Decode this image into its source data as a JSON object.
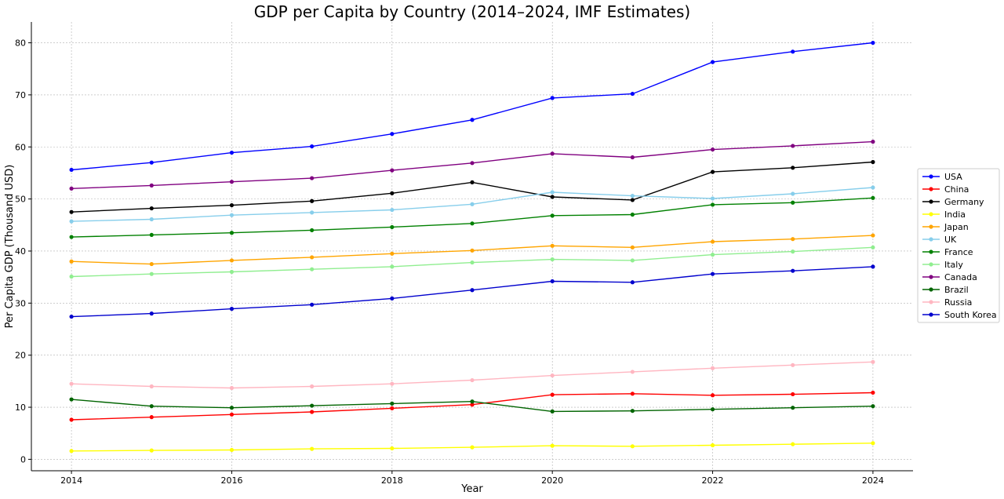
{
  "chart_data": {
    "type": "line",
    "title": "GDP per Capita by Country (2014–2024, IMF Estimates)",
    "xlabel": "Year",
    "ylabel": "Per Capita GDP (Thousand USD)",
    "x": [
      2014,
      2015,
      2016,
      2017,
      2018,
      2019,
      2020,
      2021,
      2022,
      2023,
      2024
    ],
    "xticks": [
      2014,
      2016,
      2018,
      2020,
      2022,
      2024
    ],
    "yticks": [
      0,
      10,
      20,
      30,
      40,
      50,
      60,
      70,
      80
    ],
    "xlim": [
      2013.5,
      2024.5
    ],
    "ylim": [
      -2.2,
      84
    ],
    "grid": true,
    "legend_position": "center-right",
    "series": [
      {
        "name": "USA",
        "color": "#0000ff",
        "values": [
          55.6,
          57.0,
          58.9,
          60.1,
          62.5,
          65.2,
          69.4,
          70.2,
          76.3,
          78.3,
          80.0
        ]
      },
      {
        "name": "China",
        "color": "#ff0000",
        "values": [
          7.6,
          8.1,
          8.6,
          9.1,
          9.8,
          10.5,
          12.4,
          12.6,
          12.3,
          12.5,
          12.8
        ]
      },
      {
        "name": "Germany",
        "color": "#000000",
        "values": [
          47.5,
          48.2,
          48.8,
          49.6,
          51.1,
          53.2,
          50.4,
          49.8,
          55.2,
          56.0,
          57.1
        ]
      },
      {
        "name": "India",
        "color": "#ffff00",
        "values": [
          1.6,
          1.7,
          1.8,
          2.0,
          2.1,
          2.3,
          2.6,
          2.5,
          2.7,
          2.9,
          3.1
        ]
      },
      {
        "name": "Japan",
        "color": "#ffa500",
        "values": [
          38.0,
          37.5,
          38.2,
          38.8,
          39.5,
          40.1,
          41.0,
          40.7,
          41.8,
          42.3,
          43.0
        ]
      },
      {
        "name": "UK",
        "color": "#87ceeb",
        "values": [
          45.7,
          46.1,
          46.9,
          47.4,
          47.9,
          49.0,
          51.3,
          50.6,
          50.1,
          51.0,
          52.2
        ]
      },
      {
        "name": "France",
        "color": "#008000",
        "values": [
          42.7,
          43.1,
          43.5,
          44.0,
          44.6,
          45.3,
          46.8,
          47.0,
          48.9,
          49.3,
          50.2
        ]
      },
      {
        "name": "Italy",
        "color": "#90ee90",
        "values": [
          35.1,
          35.6,
          36.0,
          36.5,
          37.0,
          37.8,
          38.4,
          38.2,
          39.3,
          39.9,
          40.7
        ]
      },
      {
        "name": "Canada",
        "color": "#800080",
        "values": [
          52.0,
          52.6,
          53.3,
          54.0,
          55.5,
          56.9,
          58.7,
          58.0,
          59.5,
          60.2,
          61.0
        ]
      },
      {
        "name": "Brazil",
        "color": "#006400",
        "values": [
          11.5,
          10.2,
          9.9,
          10.3,
          10.7,
          11.1,
          9.2,
          9.3,
          9.6,
          9.9,
          10.2
        ]
      },
      {
        "name": "Russia",
        "color": "#ffb6c1",
        "values": [
          14.5,
          14.0,
          13.7,
          14.0,
          14.5,
          15.2,
          16.1,
          16.8,
          17.5,
          18.1,
          18.7
        ]
      },
      {
        "name": "South Korea",
        "color": "#0000cd",
        "values": [
          27.4,
          28.0,
          28.9,
          29.7,
          30.9,
          32.5,
          34.2,
          34.0,
          35.6,
          36.2,
          37.0
        ]
      }
    ]
  }
}
